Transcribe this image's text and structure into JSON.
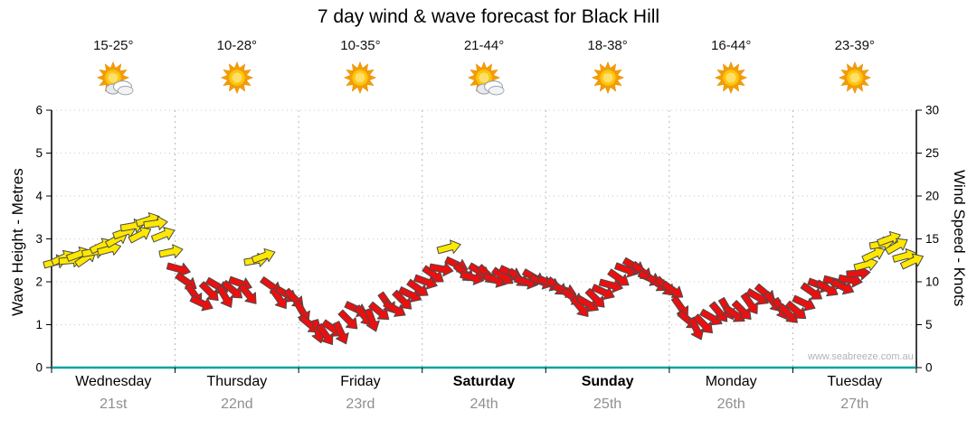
{
  "watermark": "www.seabreeze.com.au",
  "chart_data": {
    "type": "line",
    "subtype": "wind-arrow-sequence",
    "title": "7 day wind & wave forecast for Black Hill",
    "ylabel_left": "Wave Height - Metres",
    "ylabel_right": "Wind Speed - Knots",
    "ylim_left_m": [
      0,
      6
    ],
    "ylim_right_knots": [
      0,
      30
    ],
    "left_ticks": [
      0,
      1,
      2,
      3,
      4,
      5,
      6
    ],
    "right_ticks": [
      0,
      5,
      10,
      15,
      20,
      25,
      30
    ],
    "grid": "dotted",
    "legend": "none",
    "arrow_colors": {
      "y": "#ffe800",
      "r": "#ea1010"
    },
    "axis_colors": {
      "x_axis": "#00a3a3",
      "y_axis": "#000000"
    },
    "days": [
      {
        "name": "Wednesday",
        "date": "21st",
        "weekend": false,
        "temp": "15-25°",
        "icon": "sun-cloud",
        "wind_knots": [
          12.3,
          12.8,
          12.5,
          13.2,
          12.8,
          13.5,
          14.2,
          13.8,
          15.0,
          15.8,
          16.5,
          15.5,
          17.2,
          16.8,
          15.5,
          13.5
        ],
        "wind_dir_deg": [
          -15,
          -25,
          -5,
          -20,
          -35,
          -10,
          -25,
          -15,
          -30,
          -20,
          -10,
          -28,
          -18,
          -8,
          -22,
          -12
        ],
        "wind_color": "yyyyyyyyyyyyyyyy"
      },
      {
        "name": "Thursday",
        "date": "22nd",
        "weekend": false,
        "temp": "10-28°",
        "icon": "sun",
        "wind_knots": [
          11.5,
          10.0,
          8.5,
          7.5,
          8.8,
          9.5,
          8.2,
          9.0,
          9.8,
          8.5,
          12.5,
          13.0,
          9.5,
          8.0,
          8.5,
          8.0
        ],
        "wind_dir_deg": [
          15,
          35,
          55,
          25,
          45,
          30,
          60,
          40,
          20,
          50,
          -10,
          -20,
          35,
          55,
          30,
          45
        ],
        "wind_color": "rrrrrrrrrryyrrrr"
      },
      {
        "name": "Friday",
        "date": "23rd",
        "weekend": false,
        "temp": "10-35°",
        "icon": "sun",
        "wind_knots": [
          6.5,
          5.0,
          4.2,
          3.8,
          4.5,
          4.0,
          5.5,
          6.8,
          6.0,
          5.5,
          6.5,
          7.5,
          6.8,
          7.8,
          8.5,
          9.2
        ],
        "wind_dir_deg": [
          60,
          40,
          75,
          55,
          35,
          65,
          45,
          25,
          50,
          70,
          40,
          55,
          30,
          45,
          25,
          35
        ],
        "wind_color": "rrrrrrrrrrrrrrrr"
      },
      {
        "name": "Saturday",
        "date": "24th",
        "weekend": true,
        "temp": "21-44°",
        "icon": "sun-cloud",
        "wind_knots": [
          10.0,
          10.8,
          11.5,
          14.0,
          12.0,
          11.0,
          10.5,
          11.2,
          10.8,
          10.2,
          10.6,
          11.0,
          10.4,
          10.0,
          10.5,
          10.0
        ],
        "wind_dir_deg": [
          20,
          35,
          10,
          -15,
          25,
          40,
          15,
          30,
          45,
          20,
          35,
          25,
          40,
          15,
          30,
          20
        ],
        "wind_color": "rrryrrrrrrrrrrrr"
      },
      {
        "name": "Sunday",
        "date": "25th",
        "weekend": true,
        "temp": "18-38°",
        "icon": "sun",
        "wind_knots": [
          9.8,
          9.4,
          9.0,
          8.2,
          7.0,
          7.4,
          8.0,
          8.8,
          9.6,
          10.4,
          11.4,
          11.8,
          11.2,
          10.4,
          9.8,
          9.4
        ],
        "wind_dir_deg": [
          25,
          40,
          20,
          35,
          50,
          30,
          45,
          25,
          15,
          35,
          20,
          30,
          40,
          25,
          35,
          45
        ],
        "wind_color": "rrrrrrrrrrrrrrrr"
      },
      {
        "name": "Monday",
        "date": "26th",
        "weekend": false,
        "temp": "16-44°",
        "icon": "sun",
        "wind_knots": [
          9.0,
          7.0,
          5.5,
          4.5,
          5.0,
          5.8,
          6.4,
          6.8,
          6.2,
          6.6,
          7.4,
          8.2,
          8.6,
          7.6,
          6.8,
          6.2
        ],
        "wind_dir_deg": [
          35,
          55,
          40,
          65,
          45,
          30,
          50,
          60,
          35,
          45,
          55,
          30,
          40,
          50,
          60,
          45
        ],
        "wind_color": "rrrrrrrrrrrrrrrr"
      },
      {
        "name": "Tuesday",
        "date": "27th",
        "weekend": false,
        "temp": "23-39°",
        "icon": "sun",
        "wind_knots": [
          6.6,
          7.5,
          8.8,
          9.6,
          9.2,
          10.0,
          9.4,
          10.2,
          11.0,
          12.0,
          13.2,
          14.4,
          15.0,
          14.2,
          13.0,
          12.4
        ],
        "wind_dir_deg": [
          40,
          25,
          35,
          20,
          30,
          15,
          25,
          10,
          -5,
          -15,
          -25,
          -10,
          -20,
          -30,
          -15,
          -25
        ],
        "wind_color": "rrrrrrrrryyyyyyy"
      }
    ]
  }
}
